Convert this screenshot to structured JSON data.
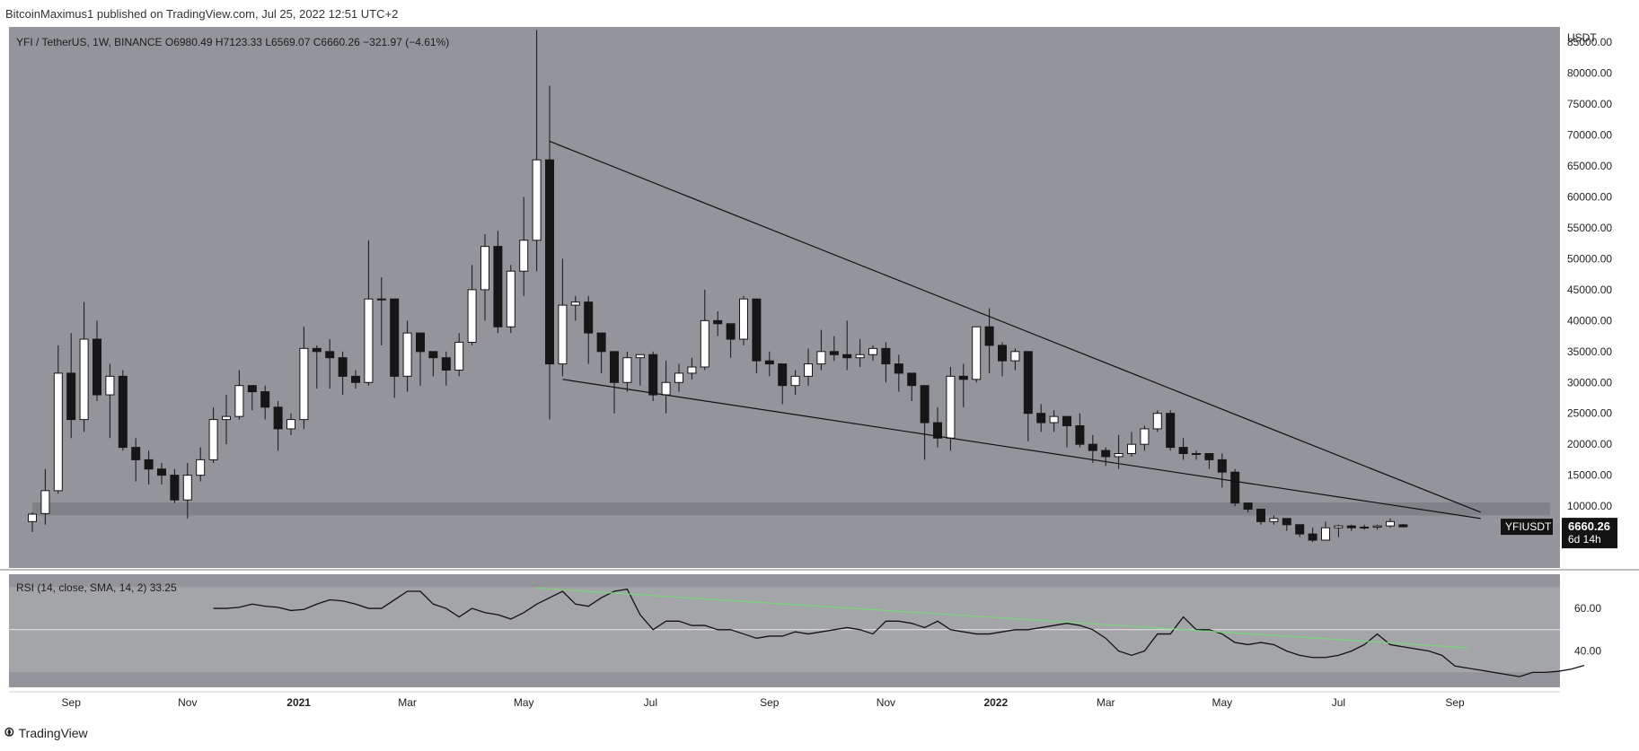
{
  "header": {
    "publisher_line": "BitcoinMaximus1 published on TradingView.com, Jul 25, 2022 12:51 UTC+2"
  },
  "footer": {
    "brand": "TradingView"
  },
  "legend": {
    "symbol": "YFI / TetherUS, 1W, BINANCE",
    "o_label": "O",
    "o": "6980.49",
    "h_label": "H",
    "h": "7123.33",
    "l_label": "L",
    "l": "6569.07",
    "c_label": "C",
    "c": "6660.26",
    "change": "−321.97 (−4.61%)"
  },
  "rsi_legend": {
    "label": "RSI (14, close, SMA, 14, 2)",
    "value": "33.25"
  },
  "colors": {
    "background": "#93959a",
    "band": "#a4a5a9",
    "candle_up": "#ffffff",
    "candle_down": "#161616",
    "trendline": "#111111",
    "rsi_line": "#111111",
    "rsi_trendline": "#7bd47b",
    "support_zone": "#7b7d82"
  },
  "chart_data": [
    {
      "type": "candlestick",
      "title": "YFI / TetherUS, 1W, BINANCE",
      "ylabel": "USDT",
      "ylim": [
        0,
        87500
      ],
      "y_ticks": [
        10000,
        15000,
        20000,
        25000,
        30000,
        35000,
        40000,
        45000,
        50000,
        55000,
        60000,
        65000,
        70000,
        75000,
        80000,
        85000
      ],
      "y_tick_labels": [
        "10000.00",
        "15000.00",
        "20000.00",
        "25000.00",
        "30000.00",
        "35000.00",
        "40000.00",
        "45000.00",
        "50000.00",
        "55000.00",
        "60000.00",
        "65000.00",
        "70000.00",
        "75000.00",
        "80000.00",
        "85000.00"
      ],
      "x_labels": [
        "Sep",
        "Nov",
        "2021",
        "Mar",
        "May",
        "Jul",
        "Sep",
        "Nov",
        "2022",
        "Mar",
        "May",
        "Jul",
        "Sep"
      ],
      "x_label_positions": [
        3.0,
        12.0,
        20.6,
        29.0,
        38.0,
        47.8,
        57.0,
        66.0,
        74.5,
        83.0,
        92.0,
        101.0,
        110.0
      ],
      "last_price_tag": "YFIUSDT",
      "last_price": "6660.26",
      "countdown": "6d 14h",
      "support_zone": [
        8500,
        10600
      ],
      "candles": [
        [
          0,
          7500,
          8700,
          5800,
          9000
        ],
        [
          1,
          8800,
          12500,
          7000,
          16000
        ],
        [
          2,
          12500,
          31500,
          12000,
          36000
        ],
        [
          3,
          31500,
          24000,
          21000,
          38000
        ],
        [
          4,
          24000,
          37000,
          22000,
          43000
        ],
        [
          5,
          37000,
          28000,
          27000,
          40000
        ],
        [
          6,
          28000,
          31000,
          21000,
          33000
        ],
        [
          7,
          31000,
          19500,
          19000,
          32000
        ],
        [
          8,
          19500,
          17500,
          14000,
          21000
        ],
        [
          9,
          17500,
          16000,
          13500,
          19000
        ],
        [
          10,
          16000,
          15000,
          13500,
          17000
        ],
        [
          11,
          15000,
          11000,
          10500,
          16000
        ],
        [
          12,
          11000,
          15000,
          8000,
          17000
        ],
        [
          13,
          15000,
          17500,
          14000,
          19500
        ],
        [
          14,
          17500,
          24000,
          17000,
          26000
        ],
        [
          15,
          24000,
          24500,
          20000,
          28000
        ],
        [
          16,
          24500,
          29500,
          24000,
          32000
        ],
        [
          17,
          29500,
          28500,
          25500,
          29000
        ],
        [
          18,
          28500,
          26000,
          24000,
          29500
        ],
        [
          19,
          26000,
          22500,
          19000,
          27000
        ],
        [
          20,
          22500,
          24000,
          21500,
          25000
        ],
        [
          21,
          24000,
          35500,
          22500,
          39000
        ],
        [
          22,
          35500,
          35000,
          29000,
          36000
        ],
        [
          23,
          35000,
          34000,
          29000,
          37000
        ],
        [
          24,
          34000,
          31000,
          28000,
          35000
        ],
        [
          25,
          31000,
          30000,
          29000,
          32000
        ],
        [
          26,
          30000,
          43500,
          29500,
          53000
        ],
        [
          27,
          43500,
          43500,
          36000,
          47000
        ],
        [
          28,
          43500,
          31000,
          27500,
          43500
        ],
        [
          29,
          31000,
          38000,
          28500,
          40000
        ],
        [
          30,
          38000,
          35000,
          29500,
          38000
        ],
        [
          31,
          35000,
          34000,
          31000,
          35000
        ],
        [
          32,
          34000,
          32000,
          29500,
          35000
        ],
        [
          33,
          32000,
          36500,
          31000,
          38000
        ],
        [
          34,
          36500,
          45000,
          36000,
          49000
        ],
        [
          35,
          45000,
          52000,
          40000,
          54000
        ],
        [
          36,
          52000,
          39000,
          38000,
          54500
        ],
        [
          37,
          39000,
          48000,
          38000,
          49000
        ],
        [
          38,
          48000,
          53000,
          44000,
          60000
        ],
        [
          39,
          53000,
          66000,
          48000,
          87000
        ],
        [
          40,
          66000,
          33000,
          24000,
          78000
        ],
        [
          41,
          33000,
          42500,
          31000,
          50000
        ],
        [
          42,
          42500,
          43000,
          40000,
          44000
        ],
        [
          43,
          43000,
          38000,
          33000,
          44000
        ],
        [
          44,
          38000,
          35000,
          31500,
          38000
        ],
        [
          45,
          35000,
          30000,
          25000,
          35000
        ],
        [
          46,
          30000,
          34000,
          28500,
          35000
        ],
        [
          47,
          34000,
          34500,
          29500,
          34500
        ],
        [
          48,
          34500,
          28000,
          27000,
          35000
        ],
        [
          49,
          28000,
          30000,
          25000,
          33500
        ],
        [
          50,
          30000,
          31500,
          28500,
          33000
        ],
        [
          51,
          31500,
          32500,
          30500,
          34000
        ],
        [
          52,
          32500,
          40000,
          32000,
          45000
        ],
        [
          53,
          40000,
          39500,
          37500,
          41500
        ],
        [
          54,
          39500,
          37000,
          34000,
          39500
        ],
        [
          55,
          37000,
          43500,
          36000,
          44000
        ],
        [
          56,
          43500,
          33500,
          31500,
          43500
        ],
        [
          57,
          33500,
          33000,
          31000,
          35000
        ],
        [
          58,
          33000,
          29500,
          26500,
          33000
        ],
        [
          59,
          29500,
          31000,
          28000,
          32000
        ],
        [
          60,
          31000,
          33000,
          29500,
          35500
        ],
        [
          61,
          33000,
          35000,
          32000,
          38500
        ],
        [
          62,
          35000,
          34500,
          33500,
          37500
        ],
        [
          63,
          34500,
          34000,
          32000,
          40000
        ],
        [
          64,
          34000,
          34500,
          32500,
          37000
        ],
        [
          65,
          34500,
          35500,
          33500,
          36000
        ],
        [
          66,
          35500,
          33000,
          30000,
          36500
        ],
        [
          67,
          33000,
          31500,
          28500,
          34500
        ],
        [
          68,
          31500,
          29500,
          27000,
          31500
        ],
        [
          69,
          29500,
          23500,
          17500,
          29500
        ],
        [
          70,
          23500,
          21000,
          19500,
          26000
        ],
        [
          71,
          21000,
          31000,
          19000,
          32500
        ],
        [
          72,
          31000,
          30500,
          26000,
          33000
        ],
        [
          73,
          30500,
          39000,
          30000,
          39000
        ],
        [
          74,
          39000,
          36000,
          31500,
          42000
        ],
        [
          75,
          36000,
          33500,
          31000,
          36500
        ],
        [
          76,
          33500,
          35000,
          32000,
          35500
        ],
        [
          77,
          35000,
          25000,
          20500,
          35000
        ],
        [
          78,
          25000,
          23500,
          22000,
          26500
        ],
        [
          79,
          23500,
          24500,
          22000,
          25500
        ],
        [
          80,
          24500,
          23000,
          19500,
          24500
        ],
        [
          81,
          23000,
          20000,
          19500,
          25000
        ],
        [
          82,
          20000,
          19000,
          17000,
          21500
        ],
        [
          83,
          19000,
          18000,
          16500,
          19500
        ],
        [
          84,
          18000,
          18500,
          16000,
          21500
        ],
        [
          85,
          18500,
          20000,
          18000,
          22000
        ],
        [
          86,
          20000,
          22500,
          19000,
          23000
        ],
        [
          87,
          22500,
          25000,
          22000,
          25500
        ],
        [
          88,
          25000,
          19500,
          19000,
          25500
        ],
        [
          89,
          19500,
          18500,
          17500,
          21000
        ],
        [
          90,
          18500,
          18500,
          17500,
          19000
        ],
        [
          91,
          18500,
          17500,
          16000,
          18500
        ],
        [
          92,
          17500,
          15500,
          13000,
          18500
        ],
        [
          93,
          15500,
          10500,
          10000,
          16000
        ],
        [
          94,
          10500,
          9500,
          9000,
          10500
        ],
        [
          95,
          9500,
          7500,
          7000,
          9500
        ],
        [
          96,
          7500,
          8000,
          7000,
          8500
        ],
        [
          97,
          8000,
          7000,
          6000,
          8000
        ],
        [
          98,
          7000,
          5500,
          5000,
          7000
        ],
        [
          99,
          5500,
          4500,
          4200,
          6500
        ],
        [
          100,
          4500,
          6500,
          4500,
          7500
        ],
        [
          101,
          6500,
          6800,
          5000,
          7000
        ],
        [
          102,
          6800,
          6500,
          6000,
          7000
        ],
        [
          103,
          6500,
          6600,
          6200,
          7000
        ],
        [
          104,
          6600,
          6800,
          6200,
          7000
        ],
        [
          105,
          6800,
          7500,
          6500,
          8000
        ],
        [
          106,
          6980.49,
          6660.26,
          6569.07,
          7123.33
        ]
      ],
      "trendlines": [
        {
          "name": "upper-trendline",
          "from": [
            40,
            69000
          ],
          "to": [
            112,
            9000
          ]
        },
        {
          "name": "lower-trendline",
          "from": [
            41,
            30500
          ],
          "to": [
            112,
            8000
          ]
        }
      ]
    },
    {
      "type": "line",
      "title": "RSI (14, close, SMA, 14, 2)",
      "ylim": [
        23,
        76
      ],
      "y_ticks": [
        40,
        60
      ],
      "y_tick_labels": [
        "40.00",
        "60.00"
      ],
      "bands": [
        30,
        50,
        70
      ],
      "series": [
        {
          "name": "RSI",
          "x_start": 14,
          "values": [
            60,
            60,
            60.5,
            62,
            61,
            60.5,
            59,
            59.5,
            62,
            64,
            63.5,
            62,
            60,
            60,
            64,
            68,
            68,
            62,
            60,
            56,
            60,
            58,
            57,
            55,
            58,
            62,
            65,
            68,
            62,
            61,
            65,
            68,
            69,
            57,
            50,
            54,
            54,
            52,
            52,
            50,
            50,
            48,
            46,
            47,
            47,
            49,
            48,
            49,
            50,
            51,
            50,
            48,
            54,
            54,
            53,
            51,
            54,
            50,
            49,
            48,
            48,
            49,
            50,
            50,
            51,
            52,
            53,
            52,
            50,
            46,
            40,
            38,
            40,
            48,
            48,
            56,
            50,
            50,
            48,
            44,
            43,
            44,
            43,
            40,
            38,
            37,
            37,
            38,
            40,
            43,
            48,
            43,
            42,
            41,
            40,
            38,
            33,
            32,
            31,
            30,
            29,
            28,
            30,
            30,
            30.5,
            31.5,
            33.25
          ]
        },
        {
          "name": "RSI trendline",
          "from": [
            39,
            69.5
          ],
          "to": [
            111,
            41.5
          ]
        }
      ]
    }
  ]
}
